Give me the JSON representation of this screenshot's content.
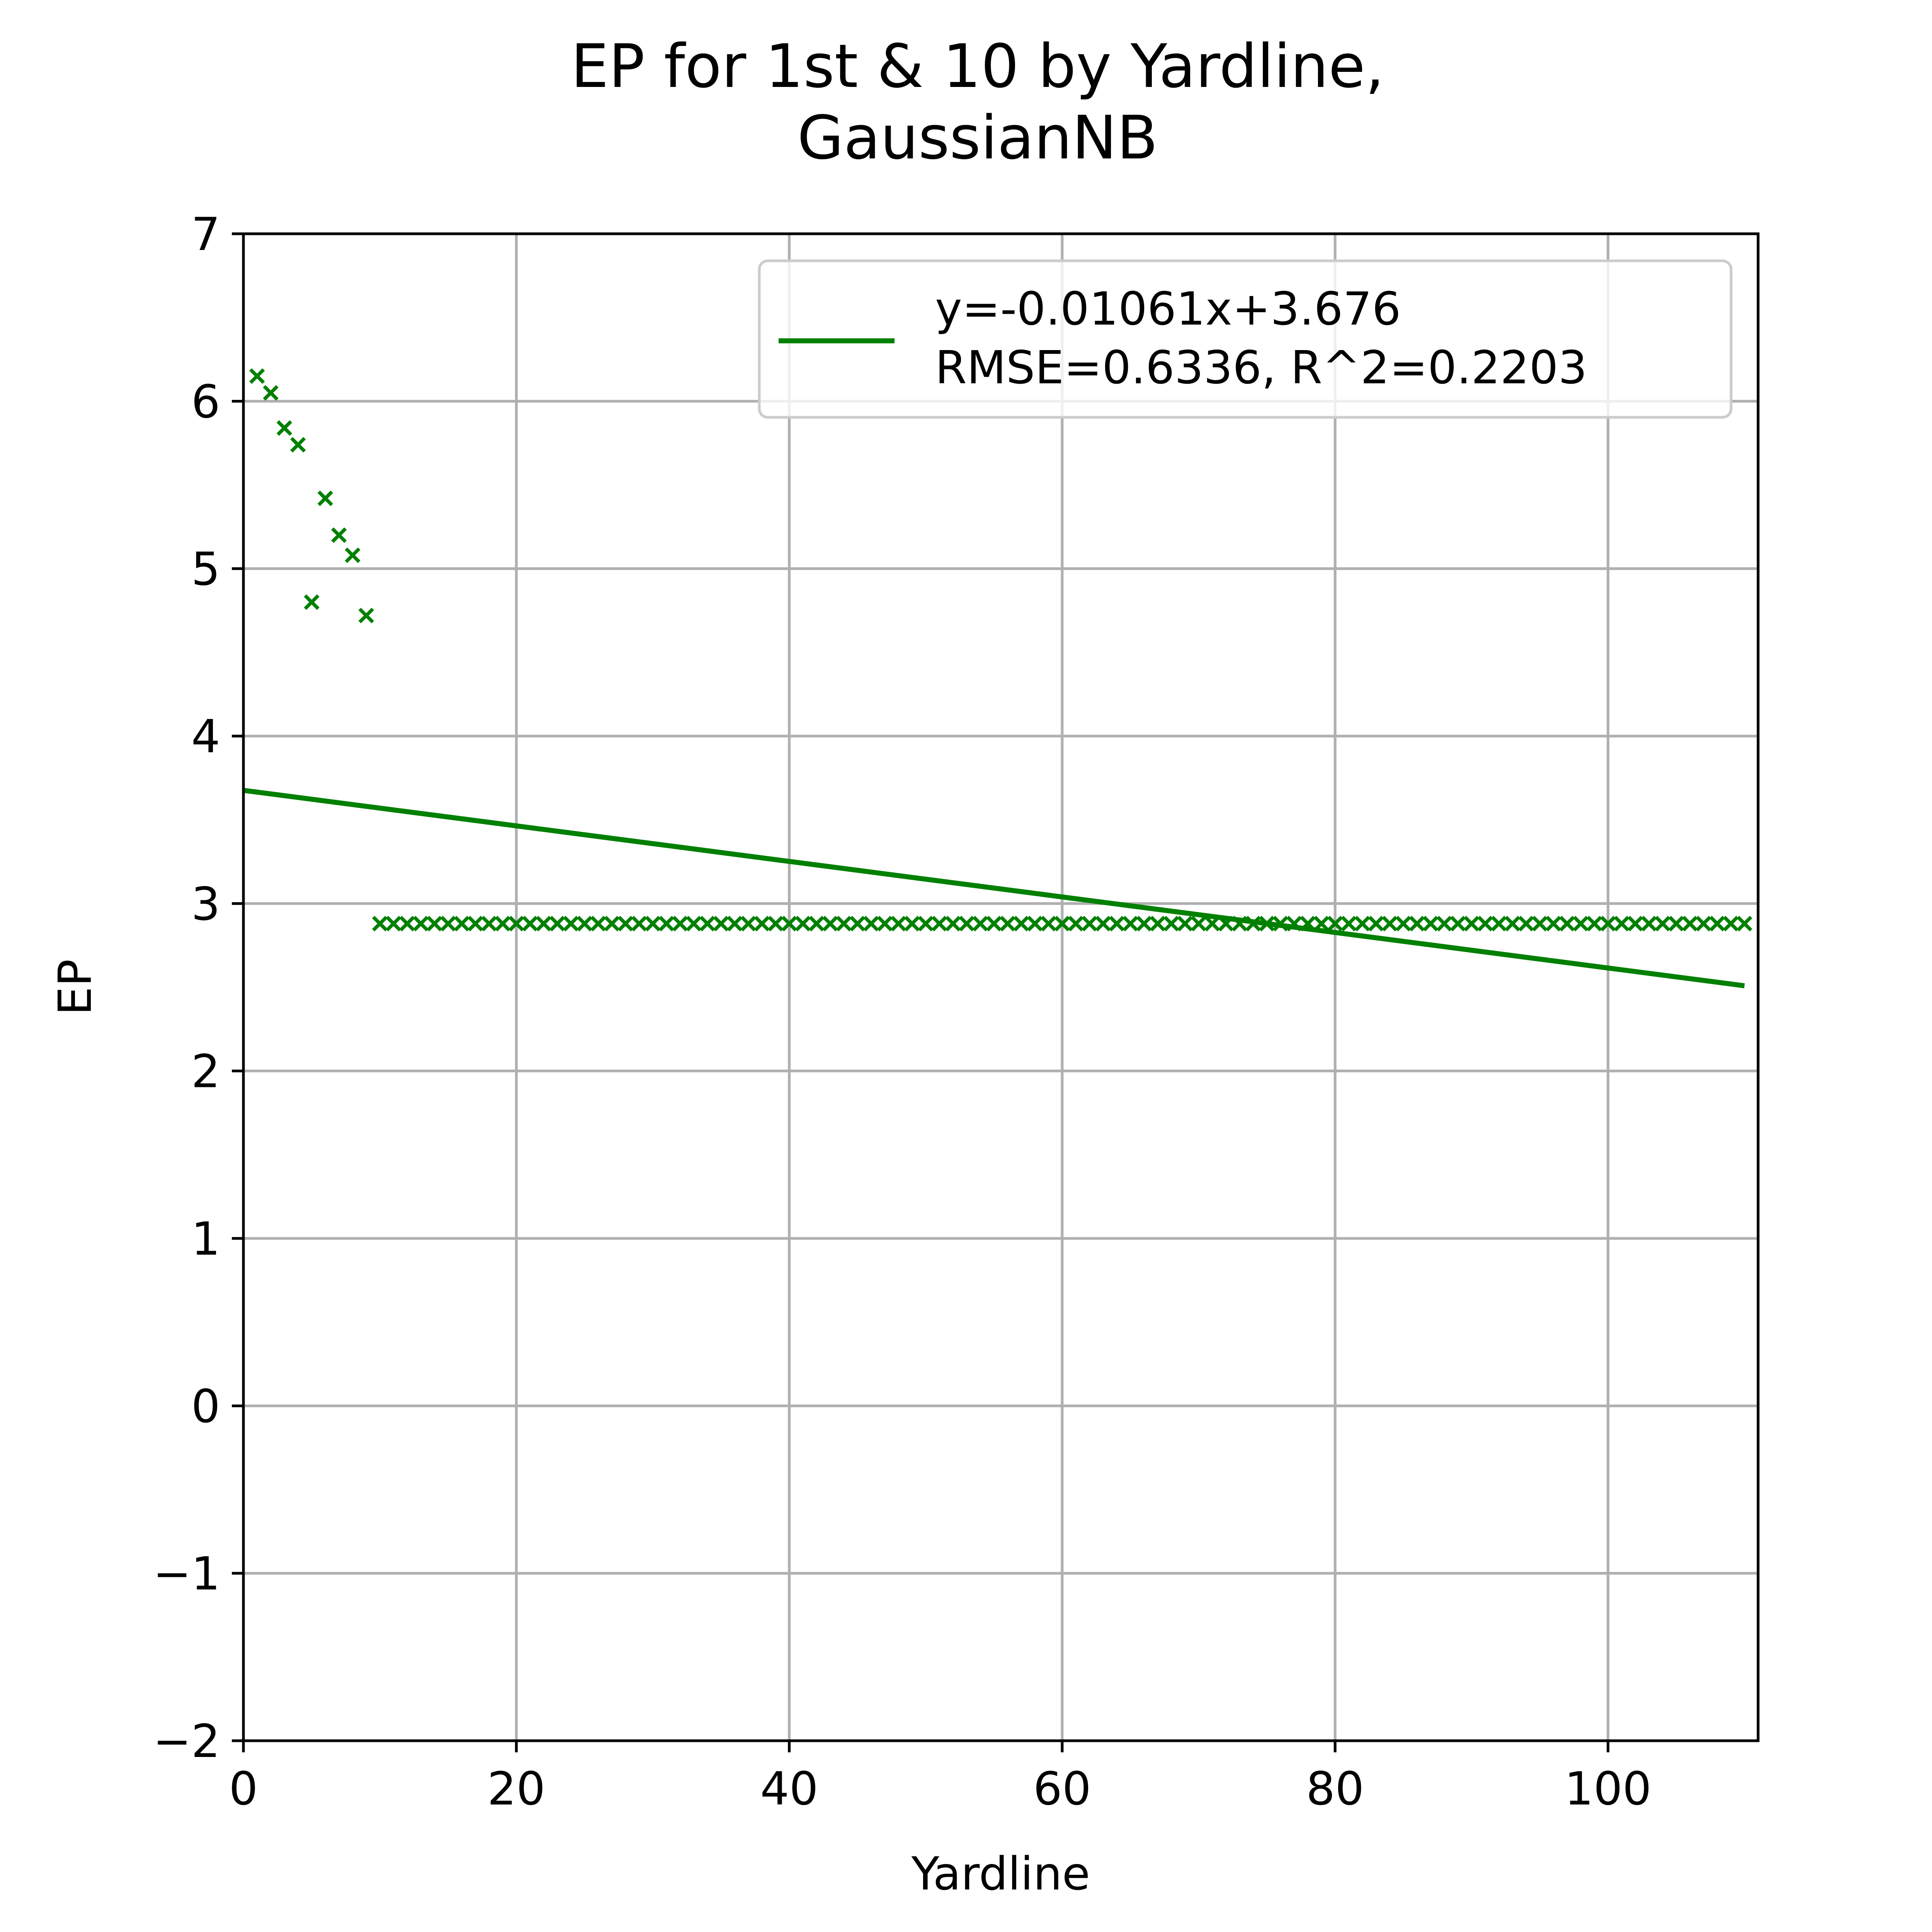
{
  "chart_data": {
    "type": "scatter",
    "title": "EP for 1st & 10 by Yardline,",
    "subtitle": "GaussianNB",
    "xlabel": "Yardline",
    "ylabel": "EP",
    "xlim": [
      0,
      111
    ],
    "ylim": [
      -2,
      7
    ],
    "xticks": [
      0,
      20,
      40,
      60,
      80,
      100
    ],
    "yticks": [
      -2,
      -1,
      0,
      1,
      2,
      3,
      4,
      5,
      6,
      7
    ],
    "xtick_labels": [
      "0",
      "20",
      "40",
      "60",
      "80",
      "100"
    ],
    "ytick_labels": [
      "−2",
      "−1",
      "0",
      "1",
      "2",
      "3",
      "4",
      "5",
      "6",
      "7"
    ],
    "grid": true,
    "legend_position": "top-right",
    "color": "#008000",
    "scatter_points": [
      {
        "x": 1,
        "y": 6.15
      },
      {
        "x": 2,
        "y": 6.05
      },
      {
        "x": 3,
        "y": 5.84
      },
      {
        "x": 4,
        "y": 5.74
      },
      {
        "x": 5,
        "y": 4.8
      },
      {
        "x": 6,
        "y": 5.42
      },
      {
        "x": 7,
        "y": 5.2
      },
      {
        "x": 8,
        "y": 5.08
      },
      {
        "x": 9,
        "y": 4.72
      }
    ],
    "scatter_constant": {
      "x_start": 10,
      "x_end": 110,
      "y": 2.88
    },
    "fit_line": {
      "slope": -0.01061,
      "intercept": 3.676,
      "x_range": [
        0,
        110
      ],
      "legend_line1": "y=-0.01061x+3.676",
      "legend_line2": "RMSE=0.6336, R^2=0.2203"
    }
  }
}
